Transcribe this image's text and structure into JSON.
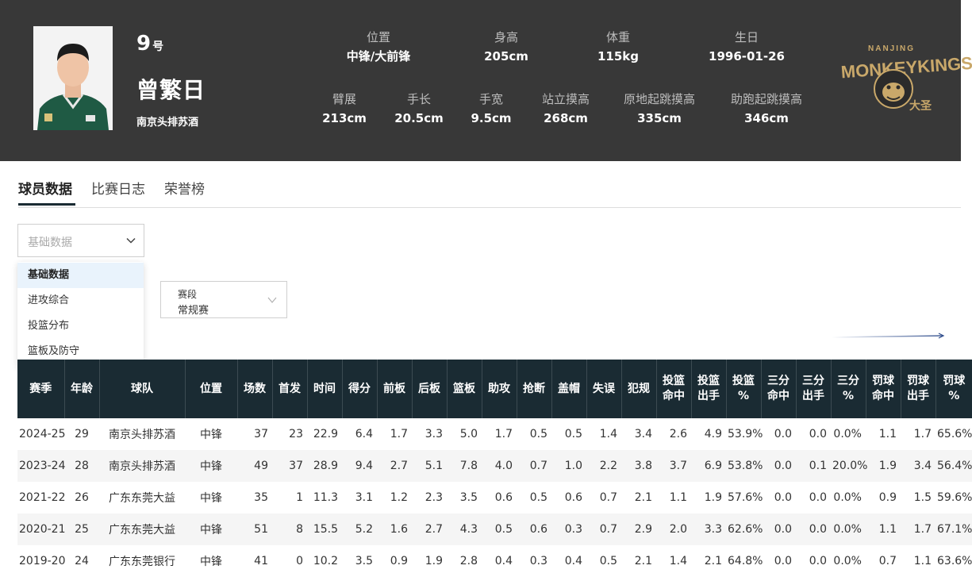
{
  "player": {
    "number": "9",
    "number_suffix": "号",
    "name": "曾繁日",
    "team": "南京头排苏酒",
    "attributes": [
      {
        "label": "位置",
        "value": "中锋/大前锋"
      },
      {
        "label": "身高",
        "value": "205cm"
      },
      {
        "label": "体重",
        "value": "115kg"
      },
      {
        "label": "生日",
        "value": "1996-01-26"
      },
      {
        "label": "臂展",
        "value": "213cm"
      },
      {
        "label": "手长",
        "value": "20.5cm"
      },
      {
        "label": "手宽",
        "value": "9.5cm"
      },
      {
        "label": "站立摸高",
        "value": "268cm"
      },
      {
        "label": "原地起跳摸高",
        "value": "335cm"
      },
      {
        "label": "助跑起跳摸高",
        "value": "346cm"
      }
    ],
    "logo_text": "MONKEYKINGS",
    "logo_top_text": "NANJING",
    "logo_badge": "大圣"
  },
  "tabs": [
    {
      "label": "球员数据",
      "active": true
    },
    {
      "label": "比赛日志",
      "active": false
    },
    {
      "label": "荣誉榜",
      "active": false
    }
  ],
  "stat_select": {
    "placeholder": "基础数据",
    "options": [
      "基础数据",
      "进攻综合",
      "投篮分布",
      "篮板及防守"
    ],
    "selected_index": 0
  },
  "stage_select": {
    "label": "赛段",
    "value": "常规赛"
  },
  "table": {
    "headers": [
      "赛季",
      "年龄",
      "球队",
      "位置",
      "场数",
      "首发",
      "时间",
      "得分",
      "前板",
      "后板",
      "篮板",
      "助攻",
      "抢断",
      "盖帽",
      "失误",
      "犯规",
      "投篮\n命中",
      "投篮\n出手",
      "投篮\n%",
      "三分\n命中",
      "三分\n出手",
      "三分\n%",
      "罚球\n命中",
      "罚球\n出手",
      "罚球\n%"
    ],
    "rows": [
      [
        "2024-25",
        "29",
        "南京头排苏酒",
        "中锋",
        "37",
        "23",
        "22.9",
        "6.4",
        "1.7",
        "3.3",
        "5.0",
        "1.7",
        "0.5",
        "0.5",
        "1.4",
        "3.4",
        "2.6",
        "4.9",
        "53.9%",
        "0.0",
        "0.0",
        "0.0%",
        "1.1",
        "1.7",
        "65.6%"
      ],
      [
        "2023-24",
        "28",
        "南京头排苏酒",
        "中锋",
        "49",
        "37",
        "28.9",
        "9.4",
        "2.7",
        "5.1",
        "7.8",
        "4.0",
        "0.7",
        "1.0",
        "2.2",
        "3.8",
        "3.7",
        "6.9",
        "53.8%",
        "0.0",
        "0.1",
        "20.0%",
        "1.9",
        "3.4",
        "56.4%"
      ],
      [
        "2021-22",
        "26",
        "广东东莞大益",
        "中锋",
        "35",
        "1",
        "11.3",
        "3.1",
        "1.2",
        "2.3",
        "3.5",
        "0.6",
        "0.5",
        "0.6",
        "0.7",
        "2.1",
        "1.1",
        "1.9",
        "57.6%",
        "0.0",
        "0.0",
        "0.0%",
        "0.9",
        "1.5",
        "59.6%"
      ],
      [
        "2020-21",
        "25",
        "广东东莞大益",
        "中锋",
        "51",
        "8",
        "15.5",
        "5.2",
        "1.6",
        "2.7",
        "4.3",
        "0.5",
        "0.6",
        "0.3",
        "0.7",
        "2.9",
        "2.0",
        "3.3",
        "62.6%",
        "0.0",
        "0.0",
        "0.0%",
        "1.1",
        "1.7",
        "67.1%"
      ],
      [
        "2019-20",
        "24",
        "广东东莞银行",
        "中锋",
        "41",
        "0",
        "10.2",
        "3.5",
        "0.9",
        "1.9",
        "2.8",
        "0.4",
        "0.3",
        "0.4",
        "0.5",
        "2.1",
        "1.4",
        "2.1",
        "64.8%",
        "0.0",
        "0.0",
        "0.0%",
        "0.7",
        "1.1",
        "63.6%"
      ]
    ]
  },
  "colors": {
    "banner": "#383838",
    "table_header": "#1a2b33",
    "dropdown_selected": "#e9f3fc",
    "logo_gold": "#c9a86a"
  }
}
